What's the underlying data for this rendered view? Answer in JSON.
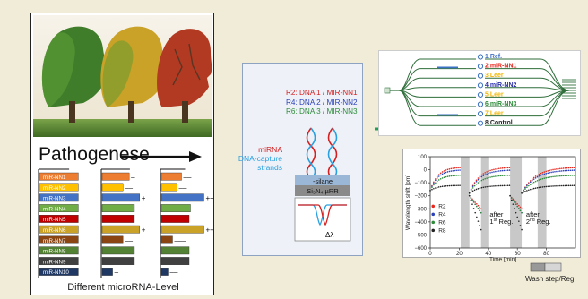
{
  "left": {
    "pathogenese_label": "Pathogenese",
    "footer_label": "Different microRNA-Level",
    "mirna_labels": [
      "miR-NN1",
      "miR-NN2",
      "miR-NN3",
      "miR-NN4",
      "miR-NN5",
      "miR-NN6",
      "miR-NN7",
      "miR-NN8",
      "miR-NN9",
      "miR-NN10"
    ],
    "bar_colors": [
      "#ed7d31",
      "#ffc000",
      "#4472c4",
      "#70ad47",
      "#c00000",
      "#c9a227",
      "#8b4513",
      "#548235",
      "#404040",
      "#1f3864"
    ],
    "col1_levels": [
      0.7,
      0.7,
      0.7,
      0.7,
      0.7,
      0.7,
      0.7,
      0.7,
      0.7,
      0.7
    ],
    "col2_levels": [
      0.52,
      0.4,
      0.72,
      0.62,
      0.62,
      0.72,
      0.4,
      0.62,
      0.62,
      0.2
    ],
    "col3_levels": [
      0.45,
      0.35,
      0.95,
      0.65,
      0.62,
      0.95,
      0.25,
      0.62,
      0.62,
      0.15
    ],
    "col2_marks": [
      "–",
      "––",
      "+",
      "",
      "",
      "+",
      "––",
      "",
      "",
      "–"
    ],
    "col3_marks": [
      "––",
      "––",
      "++",
      "",
      "",
      "++",
      "–––",
      "",
      "",
      "––"
    ]
  },
  "middle": {
    "r_lines": [
      {
        "text": "R2: DNA 1 / MIR-NN1",
        "color": "#d42020"
      },
      {
        "text": "R4: DNA 2 / MIR-NN2",
        "color": "#2a3fb8"
      },
      {
        "text": "R6: DNA 3 / MIR-NN3",
        "color": "#2e8b3a"
      }
    ],
    "mirna_label": "miRNA",
    "dna_label_1": "DNA-capture",
    "dna_label_2": "strands",
    "silane_label": "-silane",
    "substrate_label": "Si₃N₄ µRR",
    "delta_label": "Δλ"
  },
  "chip": {
    "rings": [
      {
        "label": "1 Ref.",
        "color": "#4472c4"
      },
      {
        "label": "2 miR-NN1",
        "color": "#e8261c"
      },
      {
        "label": "3 Leer",
        "color": "#f2b705"
      },
      {
        "label": "4 miR-NN2",
        "color": "#2a2fa8"
      },
      {
        "label": "5 Leer",
        "color": "#f2b705"
      },
      {
        "label": "6 miR-NN3",
        "color": "#2e8b3a"
      },
      {
        "label": "7 Leer",
        "color": "#f2b705"
      },
      {
        "label": "8 Control",
        "color": "#222222"
      }
    ]
  },
  "arrow_color": "#1f9e5a",
  "chart_data": {
    "type": "scatter",
    "xlabel": "Time [min]",
    "ylabel": "Wavelength shift [pm]",
    "xlim": [
      0,
      100
    ],
    "ylim": [
      -600,
      100
    ],
    "x_ticks": [
      0,
      20,
      40,
      60,
      80
    ],
    "y_ticks": [
      -600,
      -500,
      -400,
      -300,
      -200,
      -100,
      0,
      100
    ],
    "wash_shaded_intervals": [
      [
        21,
        27
      ],
      [
        35,
        40
      ],
      [
        55,
        63
      ],
      [
        74,
        80
      ]
    ],
    "annotations": [
      "after",
      "1",
      "st",
      " Reg.",
      "after",
      "2",
      "nd",
      " Reg."
    ],
    "series": [
      {
        "name": "R2",
        "color": "#e8261c",
        "plateau": 20,
        "drop": -300
      },
      {
        "name": "R4",
        "color": "#2a3fb8",
        "plateau": 0,
        "drop": -330
      },
      {
        "name": "R6",
        "color": "#2e8b3a",
        "plateau": -40,
        "drop": -330
      },
      {
        "name": "R8",
        "color": "#222222",
        "plateau": -120,
        "drop": -460
      }
    ]
  },
  "wash_label": "Wash step/Reg."
}
